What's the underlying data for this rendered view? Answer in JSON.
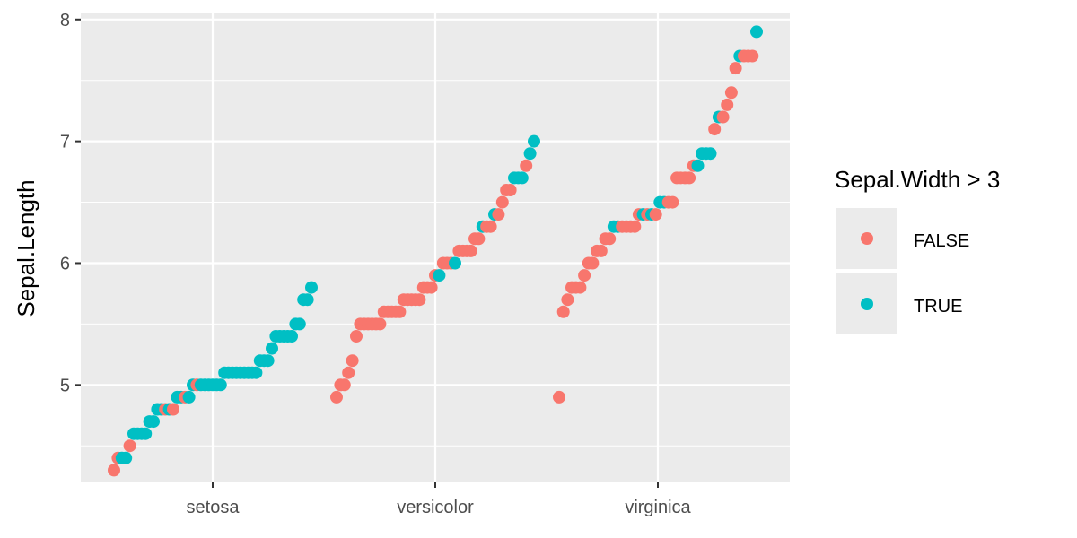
{
  "chart_data": {
    "type": "scatter",
    "title": "",
    "xlabel": "",
    "ylabel": "Sepal.Length",
    "categories": [
      "setosa",
      "versicolor",
      "virginica"
    ],
    "y_ticks": [
      5,
      6,
      7,
      8
    ],
    "ylim": [
      4.2,
      8.05
    ],
    "grid": true,
    "legend": {
      "title": "Sepal.Width > 3",
      "position": "right",
      "entries": [
        {
          "label": "FALSE",
          "color": "#F8766D"
        },
        {
          "label": "TRUE",
          "color": "#00BFC4"
        }
      ]
    },
    "colors": {
      "FALSE": "#F8766D",
      "TRUE": "#00BFC4"
    },
    "series": [
      {
        "category": "setosa",
        "values": [
          4.3,
          4.4,
          4.4,
          4.4,
          4.5,
          4.6,
          4.6,
          4.6,
          4.6,
          4.7,
          4.7,
          4.8,
          4.8,
          4.8,
          4.8,
          4.8,
          4.9,
          4.9,
          4.9,
          4.9,
          5.0,
          5.0,
          5.0,
          5.0,
          5.0,
          5.0,
          5.0,
          5.0,
          5.1,
          5.1,
          5.1,
          5.1,
          5.1,
          5.1,
          5.1,
          5.1,
          5.1,
          5.2,
          5.2,
          5.2,
          5.3,
          5.4,
          5.4,
          5.4,
          5.4,
          5.4,
          5.5,
          5.5,
          5.7,
          5.7,
          5.8
        ],
        "gt3": [
          false,
          false,
          true,
          true,
          false,
          true,
          true,
          true,
          true,
          true,
          true,
          true,
          true,
          false,
          true,
          false,
          true,
          true,
          false,
          true,
          true,
          false,
          true,
          true,
          true,
          true,
          true,
          true,
          true,
          true,
          true,
          true,
          true,
          true,
          true,
          true,
          true,
          true,
          true,
          true,
          true,
          true,
          true,
          true,
          true,
          true,
          true,
          true,
          true,
          true,
          true
        ]
      },
      {
        "category": "versicolor",
        "values": [
          4.9,
          5.0,
          5.0,
          5.1,
          5.2,
          5.4,
          5.5,
          5.5,
          5.5,
          5.5,
          5.5,
          5.5,
          5.6,
          5.6,
          5.6,
          5.6,
          5.6,
          5.7,
          5.7,
          5.7,
          5.7,
          5.7,
          5.8,
          5.8,
          5.8,
          5.9,
          5.9,
          6.0,
          6.0,
          6.0,
          6.0,
          6.1,
          6.1,
          6.1,
          6.1,
          6.2,
          6.2,
          6.3,
          6.3,
          6.3,
          6.4,
          6.4,
          6.5,
          6.6,
          6.6,
          6.7,
          6.7,
          6.7,
          6.8,
          6.9,
          7.0
        ],
        "gt3": [
          false,
          false,
          false,
          false,
          false,
          false,
          false,
          false,
          false,
          false,
          false,
          false,
          false,
          false,
          false,
          false,
          false,
          false,
          false,
          false,
          false,
          false,
          false,
          false,
          false,
          false,
          true,
          false,
          false,
          false,
          true,
          false,
          false,
          false,
          false,
          false,
          false,
          true,
          false,
          false,
          true,
          false,
          false,
          false,
          false,
          true,
          true,
          true,
          false,
          true,
          true
        ]
      },
      {
        "category": "virginica",
        "values": [
          4.9,
          5.6,
          5.7,
          5.8,
          5.8,
          5.8,
          5.9,
          6.0,
          6.0,
          6.1,
          6.1,
          6.2,
          6.2,
          6.3,
          6.3,
          6.3,
          6.3,
          6.3,
          6.3,
          6.4,
          6.4,
          6.4,
          6.4,
          6.4,
          6.5,
          6.5,
          6.5,
          6.5,
          6.7,
          6.7,
          6.7,
          6.7,
          6.8,
          6.8,
          6.9,
          6.9,
          6.9,
          7.1,
          7.2,
          7.2,
          7.3,
          7.4,
          7.6,
          7.7,
          7.7,
          7.7,
          7.7,
          7.9
        ],
        "gt3": [
          false,
          false,
          false,
          false,
          false,
          false,
          false,
          false,
          false,
          false,
          false,
          false,
          false,
          true,
          true,
          false,
          false,
          false,
          false,
          false,
          true,
          false,
          true,
          false,
          true,
          true,
          false,
          false,
          false,
          false,
          false,
          false,
          false,
          true,
          true,
          true,
          true,
          false,
          true,
          false,
          false,
          false,
          false,
          true,
          false,
          false,
          false,
          true
        ]
      }
    ]
  }
}
